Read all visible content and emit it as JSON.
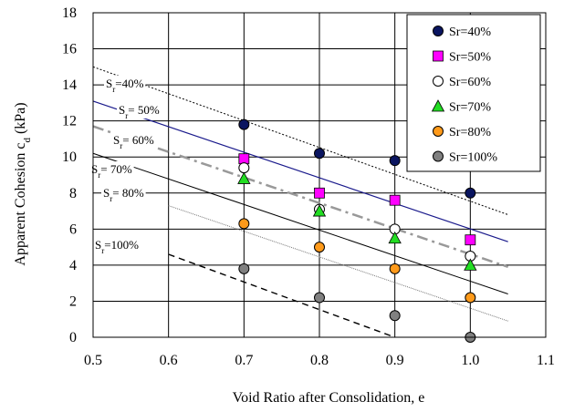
{
  "chart_data": {
    "type": "scatter",
    "xlabel": "Void Ratio after Consolidation, e",
    "ylabel": "Apparent Cohesion c",
    "ylabel_sub": "d",
    "ylabel_unit": " (kPa)",
    "xlim": [
      0.5,
      1.1
    ],
    "ylim": [
      0,
      18
    ],
    "xticks": [
      "0.5",
      "0.6",
      "0.7",
      "0.8",
      "0.9",
      "1.0",
      "1.1"
    ],
    "yticks": [
      "0",
      "2",
      "4",
      "6",
      "8",
      "10",
      "12",
      "14",
      "16",
      "18"
    ],
    "grid": true,
    "legend_position": "top-right",
    "series": [
      {
        "name": "Sr=40%",
        "marker": "circle",
        "color": "#0a1560",
        "x": [
          0.7,
          0.8,
          0.9,
          1.0
        ],
        "y": [
          11.8,
          10.2,
          9.8,
          8.0
        ]
      },
      {
        "name": "Sr=50%",
        "marker": "square",
        "color": "#ff00ff",
        "x": [
          0.7,
          0.8,
          0.9,
          1.0
        ],
        "y": [
          9.9,
          8.0,
          7.6,
          5.4
        ]
      },
      {
        "name": "Sr=60%",
        "marker": "circle",
        "color": "#ffffff",
        "x": [
          0.7,
          0.8,
          0.9,
          1.0
        ],
        "y": [
          9.4,
          7.1,
          6.0,
          4.5
        ]
      },
      {
        "name": "Sr=70%",
        "marker": "triangle",
        "color": "#22dd22",
        "x": [
          0.7,
          0.8,
          0.9,
          1.0
        ],
        "y": [
          8.8,
          7.0,
          5.5,
          4.0
        ]
      },
      {
        "name": "Sr=80%",
        "marker": "circle",
        "color": "#ff9a1a",
        "x": [
          0.7,
          0.8,
          0.9,
          1.0
        ],
        "y": [
          6.3,
          5.0,
          3.8,
          2.2
        ]
      },
      {
        "name": "Sr=100%",
        "marker": "circle",
        "color": "#808080",
        "x": [
          0.7,
          0.8,
          0.9,
          1.0
        ],
        "y": [
          3.8,
          2.2,
          1.2,
          0.0
        ]
      }
    ],
    "fit_lines": [
      {
        "label": "40%",
        "style": "dotted",
        "color": "#000000",
        "x": [
          0.5,
          1.05
        ],
        "y": [
          15.0,
          6.8
        ]
      },
      {
        "label": "50%",
        "style": "solid-blue",
        "color": "#1a1a8c",
        "x": [
          0.5,
          1.05
        ],
        "y": [
          13.1,
          5.3
        ]
      },
      {
        "label": "60%",
        "style": "dash-dot",
        "color": "#999999",
        "x": [
          0.5,
          1.05
        ],
        "y": [
          11.7,
          3.9
        ]
      },
      {
        "label": "70%",
        "style": "solid",
        "color": "#000000",
        "x": [
          0.5,
          1.05
        ],
        "y": [
          10.2,
          2.4
        ]
      },
      {
        "label": "80%",
        "style": "thin",
        "color": "#555555",
        "x": [
          0.6,
          1.05
        ],
        "y": [
          7.3,
          0.9
        ]
      },
      {
        "label": "100%",
        "style": "dashed",
        "color": "#000000",
        "x": [
          0.6,
          0.9
        ],
        "y": [
          4.6,
          0.0
        ]
      }
    ],
    "annotations": [
      {
        "prefix": "S",
        "sub": "r",
        "text": "=40%"
      },
      {
        "prefix": "S",
        "sub": "r",
        "text": "= 50%"
      },
      {
        "prefix": "S",
        "sub": "r",
        "text": "= 60%"
      },
      {
        "prefix": "S",
        "sub": "r",
        "text": "= 70%"
      },
      {
        "prefix": "S",
        "sub": "r",
        "text": "= 80%"
      },
      {
        "prefix": "S",
        "sub": "r",
        "text": "=100%"
      }
    ]
  }
}
